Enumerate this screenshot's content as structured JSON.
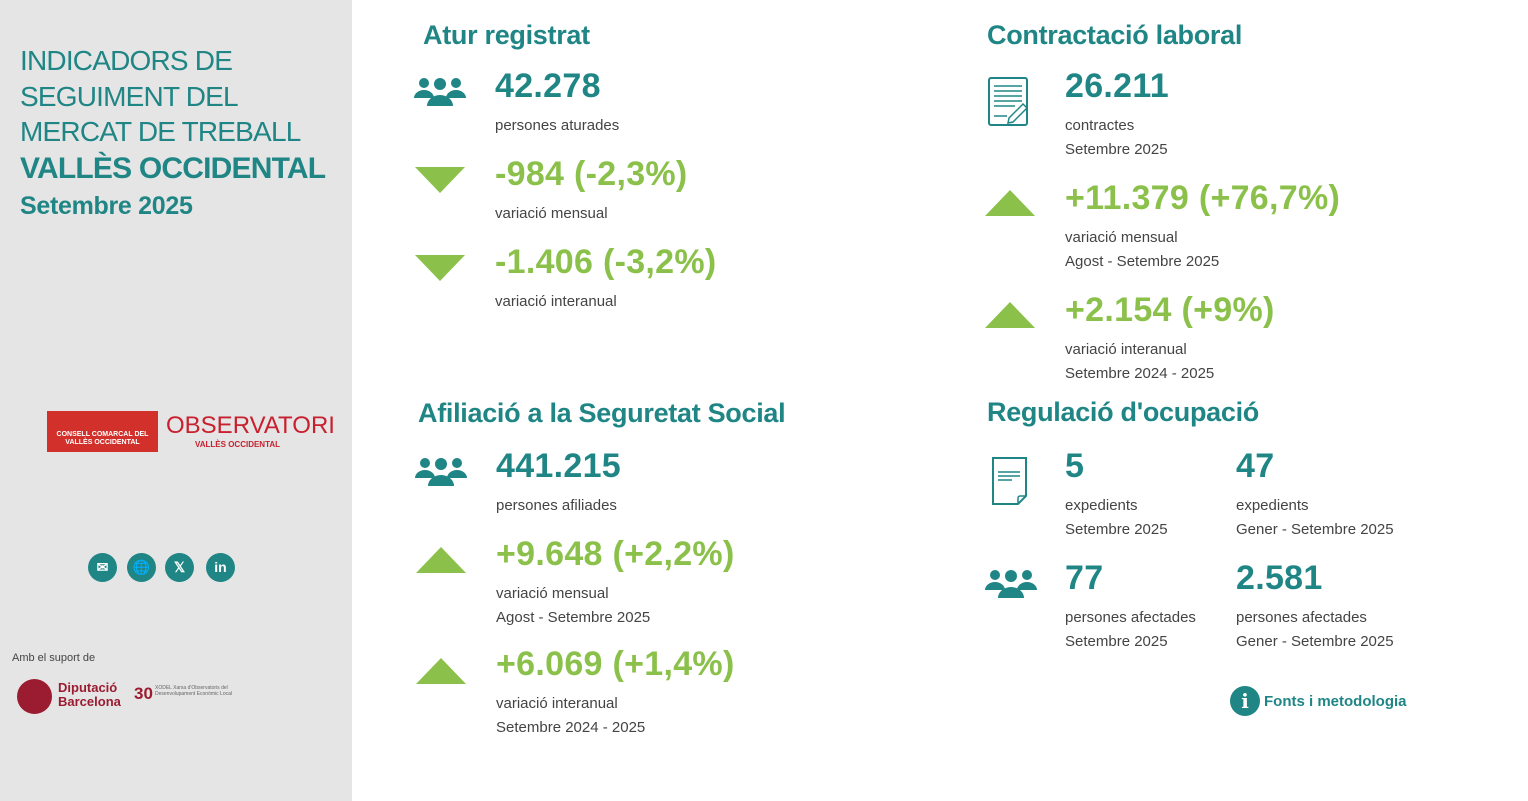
{
  "sidebar": {
    "title_lines": [
      "INDICADORS DE",
      "SEGUIMENT DEL",
      "MERCAT DE TREBALL"
    ],
    "region": "VALLÈS OCCIDENTAL",
    "period": "Setembre 2025",
    "logo_consell": "CONSELL COMARCAL DEL VALLÈS OCCIDENTAL",
    "logo_observatori": "OBSERVATORI",
    "logo_observatori_sub": "VALLÈS OCCIDENTAL",
    "social": [
      "email-icon",
      "web-icon",
      "x-icon",
      "linkedin-icon"
    ],
    "support_label": "Amb el suport de",
    "diputacio": "Diputació Barcelona",
    "xodel": "XODEL Xarxa d'Observatoris del Desenvolupament Econòmic Local"
  },
  "atur": {
    "title": "Atur registrat",
    "value": "42.278",
    "label": "persones aturades",
    "monthly": {
      "value": "-984 (-2,3%)",
      "label": "variació mensual"
    },
    "yearly": {
      "value": "-1.406 (-3,2%)",
      "label": "variació interanual"
    }
  },
  "afiliacio": {
    "title": "Afiliació a la Seguretat Social",
    "value": "441.215",
    "label": "persones afiliades",
    "monthly": {
      "value": "+9.648 (+2,2%)",
      "label": "variació mensual",
      "period": "Agost - Setembre 2025"
    },
    "yearly": {
      "value": "+6.069 (+1,4%)",
      "label": "variació interanual",
      "period": "Setembre 2024 - 2025"
    }
  },
  "contractacio": {
    "title": "Contractació laboral",
    "value": "26.211",
    "label": "contractes",
    "period": "Setembre 2025",
    "monthly": {
      "value": "+11.379 (+76,7%)",
      "label": "variació mensual",
      "period": "Agost - Setembre 2025"
    },
    "yearly": {
      "value": "+2.154 (+9%)",
      "label": "variació interanual",
      "period": "Setembre 2024 - 2025"
    }
  },
  "regulacio": {
    "title": "Regulació d'ocupació",
    "exp_month": {
      "value": "5",
      "label": "expedients",
      "period": "Setembre 2025"
    },
    "exp_ytd": {
      "value": "47",
      "label": "expedients",
      "period": "Gener - Setembre 2025"
    },
    "pers_month": {
      "value": "77",
      "label": "persones afectades",
      "period": "Setembre 2025"
    },
    "pers_ytd": {
      "value": "2.581",
      "label": "persones afectades",
      "period": "Gener - Setembre 2025"
    }
  },
  "fonts_link": "Fonts i metodologia",
  "colors": {
    "teal": "#1f8585",
    "green": "#8bc14b",
    "sidebar": "#e5e5e5",
    "red": "#d2312b"
  }
}
